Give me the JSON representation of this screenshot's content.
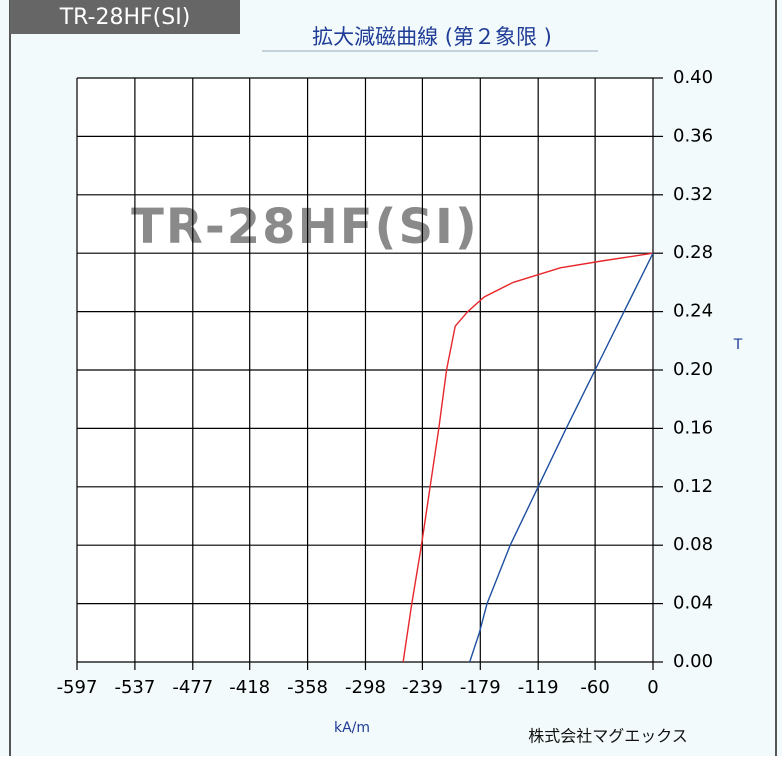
{
  "chart_data": {
    "type": "line",
    "tag": "TR-28HF(SI)",
    "title": "拡大減磁曲線 (第２象限 )",
    "watermark": "TR-28HF(SI)",
    "y_label": "T",
    "x_label": "kA/m",
    "company": "株式会社マグエックス",
    "xlim": [
      -597,
      0
    ],
    "xticks": [
      -597,
      -537,
      -477,
      -418,
      -358,
      -298,
      -239,
      -179,
      -119,
      -60,
      0
    ],
    "ylim": [
      0,
      0.4
    ],
    "yticks": [
      {
        "value": 0,
        "label": "0.00"
      },
      {
        "value": 0.04,
        "label": "0.04"
      },
      {
        "value": 0.08,
        "label": "0.08"
      },
      {
        "value": 0.12,
        "label": "0.12"
      },
      {
        "value": 0.16,
        "label": "0.16"
      },
      {
        "value": 0.2,
        "label": "0.20"
      },
      {
        "value": 0.24,
        "label": "0.24"
      },
      {
        "value": 0.28,
        "label": "0.28"
      },
      {
        "value": 0.32,
        "label": "0.32"
      },
      {
        "value": 0.36,
        "label": "0.36"
      },
      {
        "value": 0.4,
        "label": "0.40"
      }
    ],
    "grid": true,
    "series": [
      {
        "color": "#e8262b",
        "x": [
          -259,
          -250,
          -240,
          -231,
          -222,
          -214,
          -205,
          -192,
          -175,
          -145,
          -96,
          -50,
          0
        ],
        "values": [
          0,
          0.04,
          0.08,
          0.12,
          0.16,
          0.2,
          0.23,
          0.24,
          0.25,
          0.26,
          0.27,
          0.275,
          0.28
        ]
      },
      {
        "color": "#1f4fa0",
        "x": [
          -190,
          -180,
          -172,
          -160,
          -148,
          -119,
          -90,
          -60,
          -30,
          0
        ],
        "values": [
          0,
          0.02,
          0.04,
          0.06,
          0.08,
          0.12,
          0.16,
          0.2,
          0.24,
          0.28
        ]
      }
    ]
  }
}
